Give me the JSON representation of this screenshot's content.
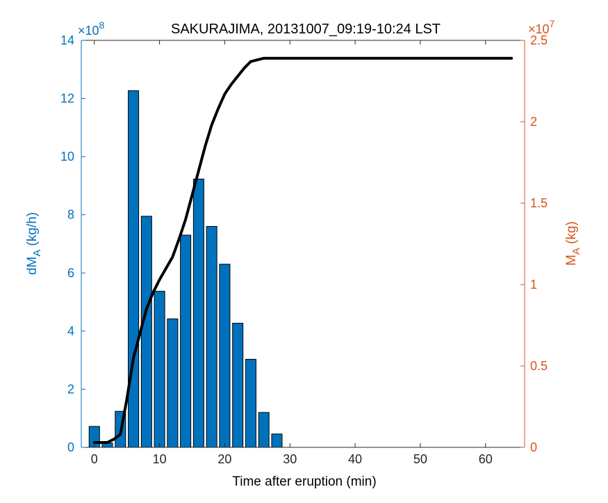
{
  "chart_data": {
    "type": "bar",
    "title": "SAKURAJIMA, 20131007_09:19-10:24 LST",
    "xlabel": "Time after eruption (min)",
    "xlim": [
      -2,
      66
    ],
    "xticks": [
      0,
      10,
      20,
      30,
      40,
      50,
      60
    ],
    "left_axis": {
      "label_main": "dM",
      "label_sub": "A",
      "label_unit": " (kg/h)",
      "ylim": [
        0,
        14
      ],
      "ticks": [
        0,
        2,
        4,
        6,
        8,
        10,
        12,
        14
      ],
      "exponent_base": "×10",
      "exponent_power": "8",
      "color": "#0072BD"
    },
    "right_axis": {
      "label_main": "M",
      "label_sub": "A",
      "label_unit": " (kg)",
      "ylim": [
        0,
        2.5
      ],
      "ticks": [
        "0",
        "0.5",
        "1",
        "1.5",
        "2",
        "2.5"
      ],
      "exponent_base": "×10",
      "exponent_power": "7",
      "color": "#D95319"
    },
    "series": [
      {
        "axis": "left",
        "kind": "bar",
        "color": "#0072BD",
        "x": [
          0,
          2,
          4,
          6,
          8,
          10,
          12,
          14,
          16,
          18,
          20,
          22,
          24,
          26,
          28
        ],
        "values": [
          0.72,
          0.15,
          1.24,
          12.27,
          7.95,
          5.37,
          4.42,
          7.3,
          9.23,
          7.6,
          6.3,
          4.27,
          3.03,
          1.2,
          0.46
        ]
      },
      {
        "axis": "right",
        "kind": "line",
        "color": "#000000",
        "x": [
          0,
          2,
          3,
          4,
          5,
          6,
          7,
          8,
          9,
          10,
          11,
          12,
          13,
          14,
          15,
          16,
          17,
          18,
          19,
          20,
          21,
          22,
          23,
          24,
          25,
          26,
          27,
          28,
          29,
          30,
          32,
          34,
          40,
          50,
          60,
          64
        ],
        "values": [
          0.03,
          0.03,
          0.05,
          0.08,
          0.3,
          0.55,
          0.7,
          0.85,
          0.95,
          1.03,
          1.1,
          1.17,
          1.28,
          1.4,
          1.55,
          1.7,
          1.85,
          1.98,
          2.08,
          2.17,
          2.23,
          2.28,
          2.33,
          2.37,
          2.38,
          2.39,
          2.39,
          2.39,
          2.39,
          2.39,
          2.39,
          2.39,
          2.39,
          2.39,
          2.39,
          2.39
        ]
      }
    ],
    "grid": false
  }
}
